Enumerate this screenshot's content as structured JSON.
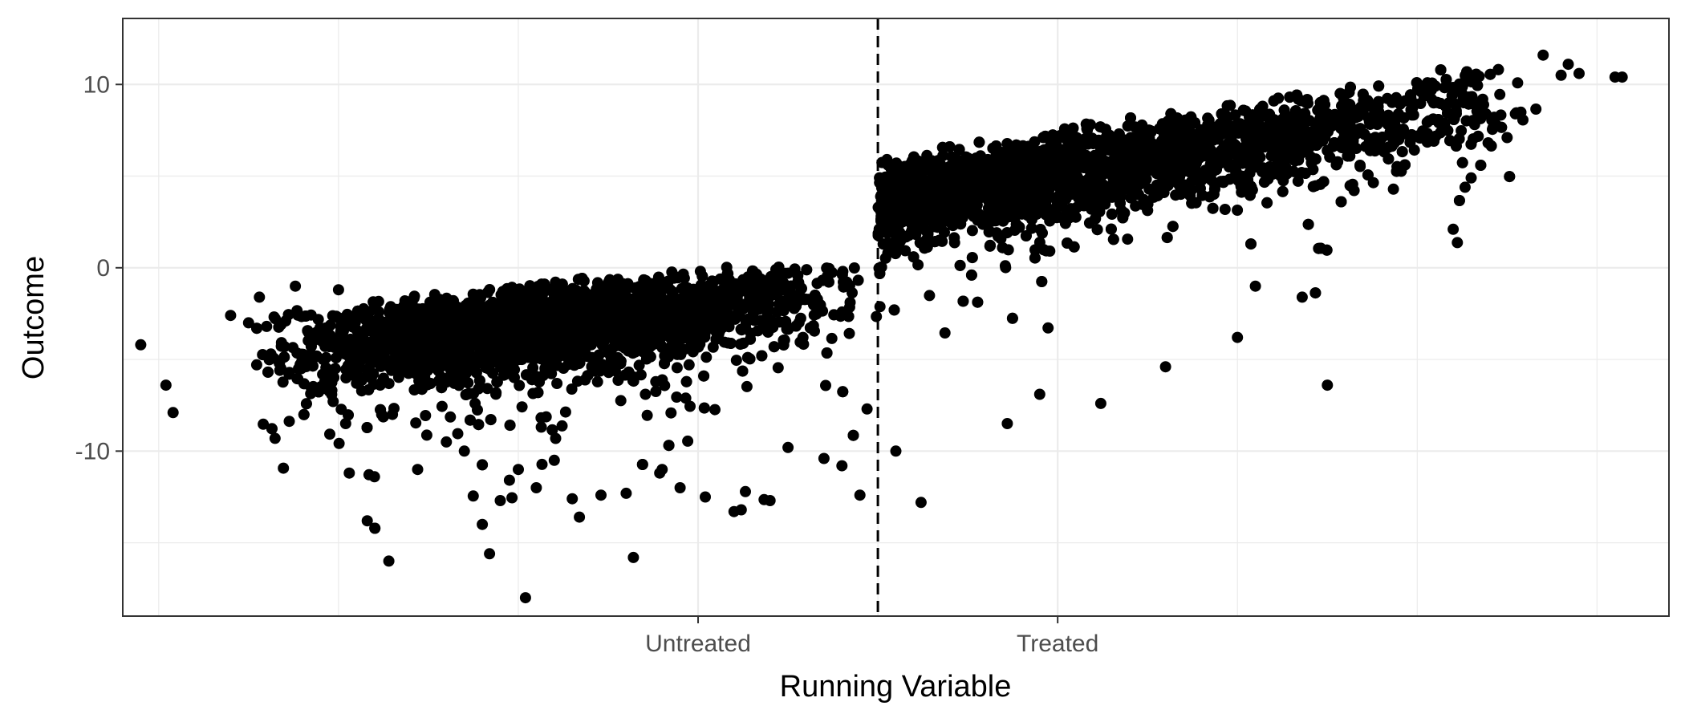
{
  "chart_data": {
    "type": "scatter",
    "title": "",
    "xlabel": "Running Variable",
    "ylabel": "Outcome",
    "x_tick_labels": [
      {
        "x": -0.5,
        "label": "Untreated"
      },
      {
        "x": 0.5,
        "label": "Treated"
      }
    ],
    "y_ticks": [
      -10,
      0,
      10
    ],
    "xlim": [
      -2.1,
      2.2
    ],
    "ylim": [
      -19,
      13.6
    ],
    "cutoff": 0,
    "grid": true,
    "colors": {
      "points": "#000000",
      "grid": "#ebebeb",
      "panel_border": "#333333"
    },
    "series": [
      {
        "model": {
          "left": {
            "x_range": [
              -1.75,
              0
            ],
            "y_at_cutoff": 0,
            "slope": 1.85,
            "upper_edge_offset": 2.6,
            "lower_tail_depth": 14
          },
          "right": {
            "x_range": [
              0,
              2.0
            ],
            "y_at_cutoff": 5.0,
            "slope": 3.0,
            "upper_edge_offset": 3.0,
            "lower_tail_depth": 12
          }
        },
        "points": [
          [
            -2.05,
            -4.2
          ],
          [
            -1.98,
            -6.4
          ],
          [
            -1.96,
            -7.9
          ],
          [
            -1.8,
            -2.6
          ],
          [
            -1.75,
            -3.0
          ],
          [
            -1.72,
            -1.6
          ],
          [
            -1.7,
            -3.2
          ],
          [
            -1.66,
            -3.1
          ],
          [
            -1.65,
            -4.3
          ],
          [
            -1.62,
            -1.0
          ],
          [
            -1.55,
            -6.5
          ],
          [
            -1.5,
            -1.2
          ],
          [
            -1.48,
            -8.5
          ],
          [
            -1.47,
            -11.2
          ],
          [
            -1.45,
            -6.3
          ],
          [
            -1.42,
            -13.8
          ],
          [
            -1.4,
            -11.4
          ],
          [
            -1.38,
            -8.0
          ],
          [
            -1.36,
            -16.0
          ],
          [
            -1.35,
            -8.0
          ],
          [
            -1.28,
            -11.0
          ],
          [
            -1.26,
            -6.0
          ],
          [
            -1.2,
            -9.5
          ],
          [
            -1.15,
            -10.0
          ],
          [
            -1.1,
            -14.0
          ],
          [
            -1.08,
            -15.6
          ],
          [
            -1.05,
            -12.7
          ],
          [
            -1.0,
            -11.0
          ],
          [
            -0.98,
            -18.0
          ],
          [
            -0.95,
            -12.0
          ],
          [
            -0.9,
            -10.5
          ],
          [
            -0.85,
            -12.6
          ],
          [
            -0.83,
            -13.6
          ],
          [
            -0.77,
            -12.4
          ],
          [
            -0.7,
            -12.3
          ],
          [
            -0.68,
            -15.8
          ],
          [
            -0.6,
            -11.0
          ],
          [
            -0.55,
            -12.0
          ],
          [
            -0.48,
            -12.5
          ],
          [
            -0.4,
            -13.3
          ],
          [
            -0.38,
            -13.2
          ],
          [
            -0.3,
            -12.7
          ],
          [
            -0.25,
            -9.8
          ],
          [
            -0.15,
            -10.4
          ],
          [
            -0.1,
            -10.8
          ],
          [
            -0.05,
            -12.4
          ],
          [
            -0.03,
            -7.7
          ],
          [
            0.05,
            -10.0
          ],
          [
            0.12,
            -12.8
          ],
          [
            0.36,
            -8.5
          ],
          [
            0.45,
            -6.9
          ],
          [
            0.62,
            -7.4
          ],
          [
            0.8,
            -5.4
          ],
          [
            1.0,
            -3.8
          ],
          [
            1.05,
            -1.0
          ],
          [
            1.18,
            -1.6
          ],
          [
            1.25,
            -6.4
          ],
          [
            1.65,
            4.9
          ],
          [
            1.6,
            2.1
          ],
          [
            1.75,
            7.1
          ],
          [
            1.9,
            10.5
          ],
          [
            1.92,
            11.1
          ],
          [
            1.95,
            10.6
          ],
          [
            2.05,
            10.4
          ],
          [
            2.07,
            10.4
          ],
          [
            1.85,
            11.6
          ]
        ]
      }
    ]
  }
}
